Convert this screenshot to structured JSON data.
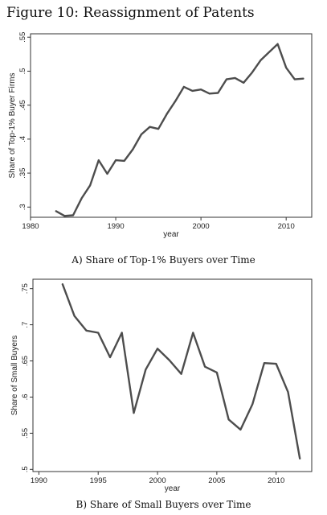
{
  "page": {
    "title": "Figure 10: Reassignment of Patents"
  },
  "captions": {
    "a": "A) Share of Top-1% Buyers over Time",
    "b": "B) Share of Small Buyers over Time"
  },
  "chart_data": [
    {
      "type": "line",
      "title": "",
      "xlabel": "year",
      "ylabel": "Share of Top-1% Buyer Firms",
      "xlim": [
        1980,
        2013
      ],
      "ylim": [
        0.285,
        0.555
      ],
      "xticks": [
        1980,
        1990,
        2000,
        2010
      ],
      "yticks": [
        0.3,
        0.35,
        0.4,
        0.45,
        0.5,
        0.55
      ],
      "ytick_labels": [
        ".3",
        ".35",
        ".4",
        ".45",
        ".5",
        ".55"
      ],
      "grid": false,
      "color": "#4d4d4d",
      "series": [
        {
          "x": [
            1983,
            1984,
            1985,
            1986,
            1987,
            1988,
            1989,
            1990,
            1991,
            1992,
            1993,
            1994,
            1995,
            1996,
            1997,
            1998,
            1999,
            2000,
            2001,
            2002,
            2003,
            2004,
            2005,
            2006,
            2007,
            2008,
            2009,
            2010,
            2011,
            2012
          ],
          "y": [
            0.294,
            0.287,
            0.288,
            0.313,
            0.332,
            0.369,
            0.349,
            0.369,
            0.368,
            0.385,
            0.407,
            0.418,
            0.415,
            0.437,
            0.456,
            0.477,
            0.471,
            0.473,
            0.467,
            0.468,
            0.488,
            0.49,
            0.483,
            0.498,
            0.516,
            0.528,
            0.54,
            0.505,
            0.488,
            0.489
          ]
        }
      ]
    },
    {
      "type": "line",
      "title": "",
      "xlabel": "year",
      "ylabel": "Share of Small Buyers",
      "xlim": [
        1989.5,
        2013
      ],
      "ylim": [
        0.497,
        0.763
      ],
      "xticks": [
        1990,
        1995,
        2000,
        2005,
        2010
      ],
      "yticks": [
        0.5,
        0.55,
        0.6,
        0.65,
        0.7,
        0.75
      ],
      "ytick_labels": [
        ".5",
        ".55",
        ".6",
        ".65",
        ".7",
        ".75"
      ],
      "grid": false,
      "color": "#4d4d4d",
      "series": [
        {
          "x": [
            1992,
            1993,
            1994,
            1995,
            1996,
            1997,
            1998,
            1999,
            2000,
            2001,
            2002,
            2003,
            2004,
            2005,
            2006,
            2007,
            2008,
            2009,
            2010,
            2011,
            2012
          ],
          "y": [
            0.756,
            0.712,
            0.692,
            0.689,
            0.655,
            0.689,
            0.578,
            0.638,
            0.667,
            0.651,
            0.632,
            0.689,
            0.642,
            0.634,
            0.569,
            0.555,
            0.59,
            0.647,
            0.646,
            0.607,
            0.515
          ]
        }
      ]
    }
  ]
}
